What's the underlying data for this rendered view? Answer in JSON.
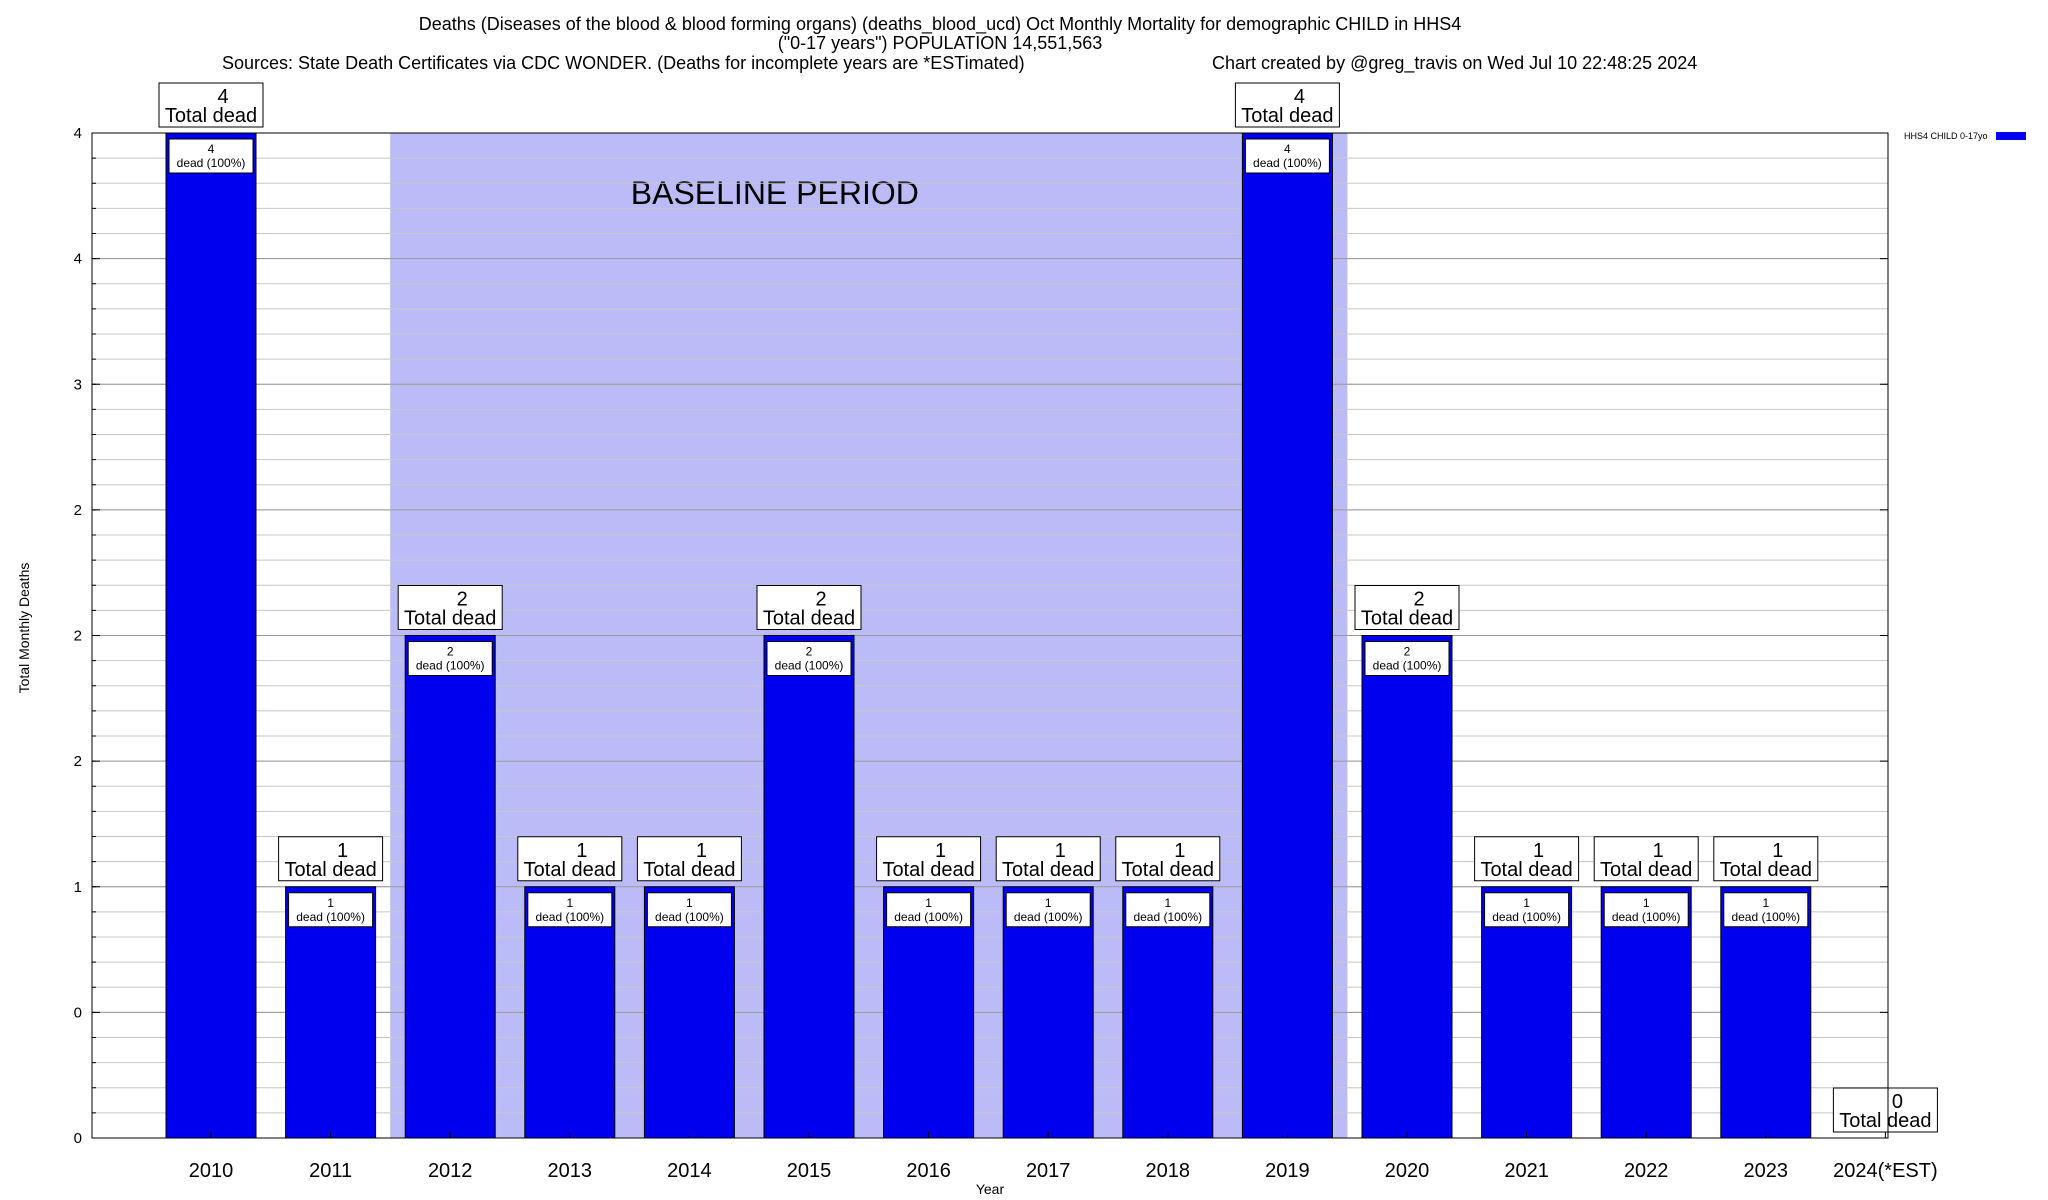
{
  "titles": {
    "line1": "Deaths (Diseases of the blood & blood forming organs) (deaths_blood_ucd) Oct Monthly Mortality for demographic CHILD in HHS4",
    "line2": "(\"0-17 years\") POPULATION 14,551,563",
    "sources": "Sources: State Death Certificates via CDC WONDER. (Deaths for incomplete years are *ESTimated)",
    "created": "Chart created by @greg_travis on Wed Jul 10 22:48:25 2024"
  },
  "chart_data": {
    "type": "bar",
    "categories": [
      "2010",
      "2011",
      "2012",
      "2013",
      "2014",
      "2015",
      "2016",
      "2017",
      "2018",
      "2019",
      "2020",
      "2021",
      "2022",
      "2023",
      "2024(*EST)"
    ],
    "series": [
      {
        "name": "HHS4 CHILD 0-17yo",
        "values": [
          4,
          1,
          2,
          1,
          1,
          2,
          1,
          1,
          1,
          4,
          2,
          1,
          1,
          1,
          0
        ],
        "color": "#0000ee"
      }
    ],
    "xlabel": "Year",
    "ylabel": "Total Monthly Deaths",
    "ylim": [
      0,
      4
    ],
    "ytick_labels": [
      "0",
      "0",
      "1",
      "2",
      "2",
      "2",
      "3",
      "4",
      "4"
    ],
    "grid": true,
    "legend_position": "top-right",
    "shaded_region": {
      "label": "BASELINE PERIOD",
      "from": "2012",
      "to": "2019",
      "color": "#bbbbf8"
    },
    "bar_labels": {
      "total_suffix": "Total dead",
      "inner_suffix": "dead (100%)"
    }
  }
}
